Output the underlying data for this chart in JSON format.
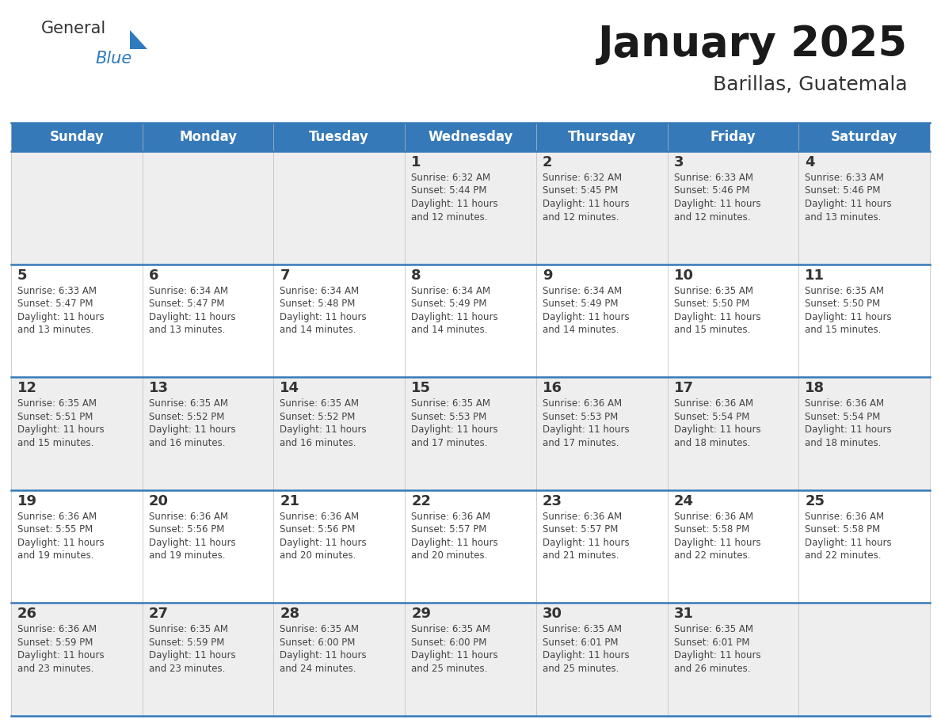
{
  "title": "January 2025",
  "subtitle": "Barillas, Guatemala",
  "header_bg_color": "#3579B8",
  "header_text_color": "#FFFFFF",
  "row_bg_color_odd": "#EEEEEE",
  "row_bg_color_even": "#FFFFFF",
  "grid_line_color": "#3579B8",
  "day_number_color": "#333333",
  "day_text_color": "#444444",
  "days_of_week": [
    "Sunday",
    "Monday",
    "Tuesday",
    "Wednesday",
    "Thursday",
    "Friday",
    "Saturday"
  ],
  "calendar_data": [
    [
      null,
      null,
      null,
      {
        "day": 1,
        "sunrise": "6:32 AM",
        "sunset": "5:44 PM",
        "daylight": "11 hours and 12 minutes"
      },
      {
        "day": 2,
        "sunrise": "6:32 AM",
        "sunset": "5:45 PM",
        "daylight": "11 hours and 12 minutes"
      },
      {
        "day": 3,
        "sunrise": "6:33 AM",
        "sunset": "5:46 PM",
        "daylight": "11 hours and 12 minutes"
      },
      {
        "day": 4,
        "sunrise": "6:33 AM",
        "sunset": "5:46 PM",
        "daylight": "11 hours and 13 minutes"
      }
    ],
    [
      {
        "day": 5,
        "sunrise": "6:33 AM",
        "sunset": "5:47 PM",
        "daylight": "11 hours and 13 minutes"
      },
      {
        "day": 6,
        "sunrise": "6:34 AM",
        "sunset": "5:47 PM",
        "daylight": "11 hours and 13 minutes"
      },
      {
        "day": 7,
        "sunrise": "6:34 AM",
        "sunset": "5:48 PM",
        "daylight": "11 hours and 14 minutes"
      },
      {
        "day": 8,
        "sunrise": "6:34 AM",
        "sunset": "5:49 PM",
        "daylight": "11 hours and 14 minutes"
      },
      {
        "day": 9,
        "sunrise": "6:34 AM",
        "sunset": "5:49 PM",
        "daylight": "11 hours and 14 minutes"
      },
      {
        "day": 10,
        "sunrise": "6:35 AM",
        "sunset": "5:50 PM",
        "daylight": "11 hours and 15 minutes"
      },
      {
        "day": 11,
        "sunrise": "6:35 AM",
        "sunset": "5:50 PM",
        "daylight": "11 hours and 15 minutes"
      }
    ],
    [
      {
        "day": 12,
        "sunrise": "6:35 AM",
        "sunset": "5:51 PM",
        "daylight": "11 hours and 15 minutes"
      },
      {
        "day": 13,
        "sunrise": "6:35 AM",
        "sunset": "5:52 PM",
        "daylight": "11 hours and 16 minutes"
      },
      {
        "day": 14,
        "sunrise": "6:35 AM",
        "sunset": "5:52 PM",
        "daylight": "11 hours and 16 minutes"
      },
      {
        "day": 15,
        "sunrise": "6:35 AM",
        "sunset": "5:53 PM",
        "daylight": "11 hours and 17 minutes"
      },
      {
        "day": 16,
        "sunrise": "6:36 AM",
        "sunset": "5:53 PM",
        "daylight": "11 hours and 17 minutes"
      },
      {
        "day": 17,
        "sunrise": "6:36 AM",
        "sunset": "5:54 PM",
        "daylight": "11 hours and 18 minutes"
      },
      {
        "day": 18,
        "sunrise": "6:36 AM",
        "sunset": "5:54 PM",
        "daylight": "11 hours and 18 minutes"
      }
    ],
    [
      {
        "day": 19,
        "sunrise": "6:36 AM",
        "sunset": "5:55 PM",
        "daylight": "11 hours and 19 minutes"
      },
      {
        "day": 20,
        "sunrise": "6:36 AM",
        "sunset": "5:56 PM",
        "daylight": "11 hours and 19 minutes"
      },
      {
        "day": 21,
        "sunrise": "6:36 AM",
        "sunset": "5:56 PM",
        "daylight": "11 hours and 20 minutes"
      },
      {
        "day": 22,
        "sunrise": "6:36 AM",
        "sunset": "5:57 PM",
        "daylight": "11 hours and 20 minutes"
      },
      {
        "day": 23,
        "sunrise": "6:36 AM",
        "sunset": "5:57 PM",
        "daylight": "11 hours and 21 minutes"
      },
      {
        "day": 24,
        "sunrise": "6:36 AM",
        "sunset": "5:58 PM",
        "daylight": "11 hours and 22 minutes"
      },
      {
        "day": 25,
        "sunrise": "6:36 AM",
        "sunset": "5:58 PM",
        "daylight": "11 hours and 22 minutes"
      }
    ],
    [
      {
        "day": 26,
        "sunrise": "6:36 AM",
        "sunset": "5:59 PM",
        "daylight": "11 hours and 23 minutes"
      },
      {
        "day": 27,
        "sunrise": "6:35 AM",
        "sunset": "5:59 PM",
        "daylight": "11 hours and 23 minutes"
      },
      {
        "day": 28,
        "sunrise": "6:35 AM",
        "sunset": "6:00 PM",
        "daylight": "11 hours and 24 minutes"
      },
      {
        "day": 29,
        "sunrise": "6:35 AM",
        "sunset": "6:00 PM",
        "daylight": "11 hours and 25 minutes"
      },
      {
        "day": 30,
        "sunrise": "6:35 AM",
        "sunset": "6:01 PM",
        "daylight": "11 hours and 25 minutes"
      },
      {
        "day": 31,
        "sunrise": "6:35 AM",
        "sunset": "6:01 PM",
        "daylight": "11 hours and 26 minutes"
      },
      null
    ]
  ],
  "logo_triangle_color": "#2E7ABF",
  "fig_width": 11.88,
  "fig_height": 9.18,
  "dpi": 100
}
